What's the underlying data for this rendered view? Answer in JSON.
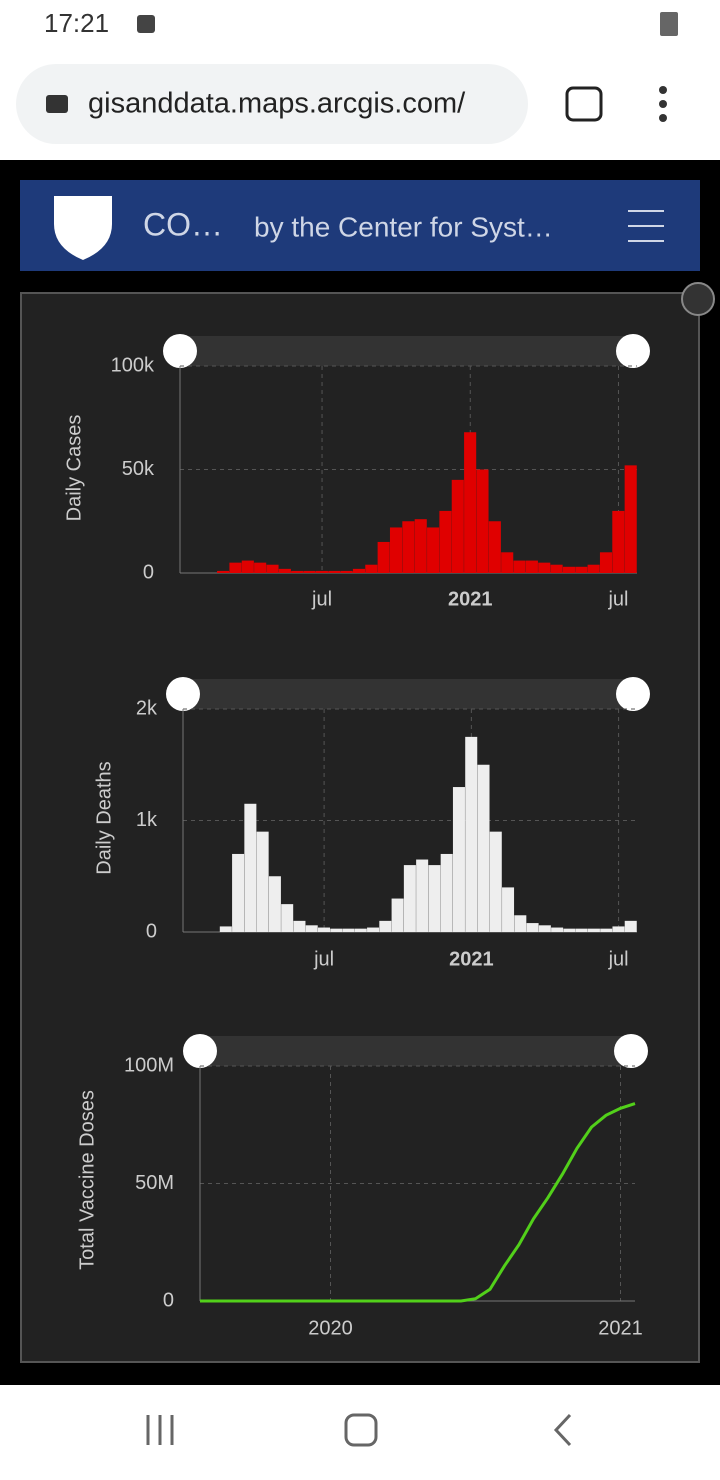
{
  "status": {
    "time": "17:21"
  },
  "browser": {
    "url": "gisanddata.maps.arcgis.com/"
  },
  "header": {
    "title": "CO…",
    "subtitle": "by the Center for Syst…"
  },
  "chart_data": [
    {
      "type": "bar",
      "y_label": "Daily Cases",
      "color": "#e00000",
      "categories": [
        null,
        null,
        null,
        null,
        null,
        null,
        null,
        null,
        null,
        null,
        null,
        "jul",
        null,
        null,
        null,
        null,
        null,
        null,
        null,
        null,
        null,
        null,
        null,
        "2021",
        null,
        null,
        null,
        null,
        null,
        null,
        null,
        null,
        null,
        null,
        null,
        "jul",
        null
      ],
      "values": [
        0,
        0,
        0,
        1000,
        5000,
        6000,
        5000,
        4000,
        2000,
        1000,
        1000,
        1000,
        1000,
        1000,
        2000,
        4000,
        15000,
        22000,
        25000,
        26000,
        22000,
        30000,
        45000,
        68000,
        50000,
        25000,
        10000,
        6000,
        6000,
        5000,
        4000,
        3000,
        3000,
        4000,
        10000,
        30000,
        52000
      ],
      "ylim": [
        0,
        100000
      ],
      "yticks": [
        0,
        {
          "value": 50000,
          "label": "50k"
        },
        {
          "value": 100000,
          "label": "100k"
        }
      ],
      "grid": true
    },
    {
      "type": "bar",
      "y_label": "Daily Deaths",
      "color": "#eeeeee",
      "categories": [
        null,
        null,
        null,
        null,
        null,
        null,
        null,
        null,
        null,
        null,
        null,
        "jul",
        null,
        null,
        null,
        null,
        null,
        null,
        null,
        null,
        null,
        null,
        null,
        "2021",
        null,
        null,
        null,
        null,
        null,
        null,
        null,
        null,
        null,
        null,
        null,
        "jul",
        null
      ],
      "values": [
        0,
        0,
        0,
        50,
        700,
        1150,
        900,
        500,
        250,
        100,
        60,
        40,
        30,
        30,
        30,
        40,
        100,
        300,
        600,
        650,
        600,
        700,
        1300,
        1750,
        1500,
        900,
        400,
        150,
        80,
        60,
        40,
        30,
        30,
        30,
        30,
        50,
        100
      ],
      "ylim": [
        0,
        2000
      ],
      "yticks": [
        0,
        {
          "value": 1000,
          "label": "1k"
        },
        {
          "value": 2000,
          "label": "2k"
        }
      ],
      "grid": true
    },
    {
      "type": "line",
      "y_label": "Total Vaccine Doses",
      "color": "#52d01a",
      "categories": [
        null,
        null,
        null,
        null,
        null,
        null,
        null,
        null,
        null,
        "2020",
        null,
        null,
        null,
        null,
        null,
        null,
        null,
        null,
        null,
        null,
        null,
        null,
        null,
        null,
        null,
        null,
        null,
        null,
        null,
        "2021",
        null
      ],
      "values": [
        0,
        0,
        0,
        0,
        0,
        0,
        0,
        0,
        0,
        0,
        0,
        0,
        0,
        0,
        0,
        0,
        0,
        0,
        0,
        1000000,
        5000000,
        15000000,
        24000000,
        35000000,
        44000000,
        54000000,
        65000000,
        74000000,
        79000000,
        82000000,
        84000000
      ],
      "ylim": [
        0,
        100000000
      ],
      "yticks": [
        0,
        {
          "value": 50000000,
          "label": "50M"
        },
        {
          "value": 100000000,
          "label": "100M"
        }
      ],
      "grid": true
    }
  ]
}
